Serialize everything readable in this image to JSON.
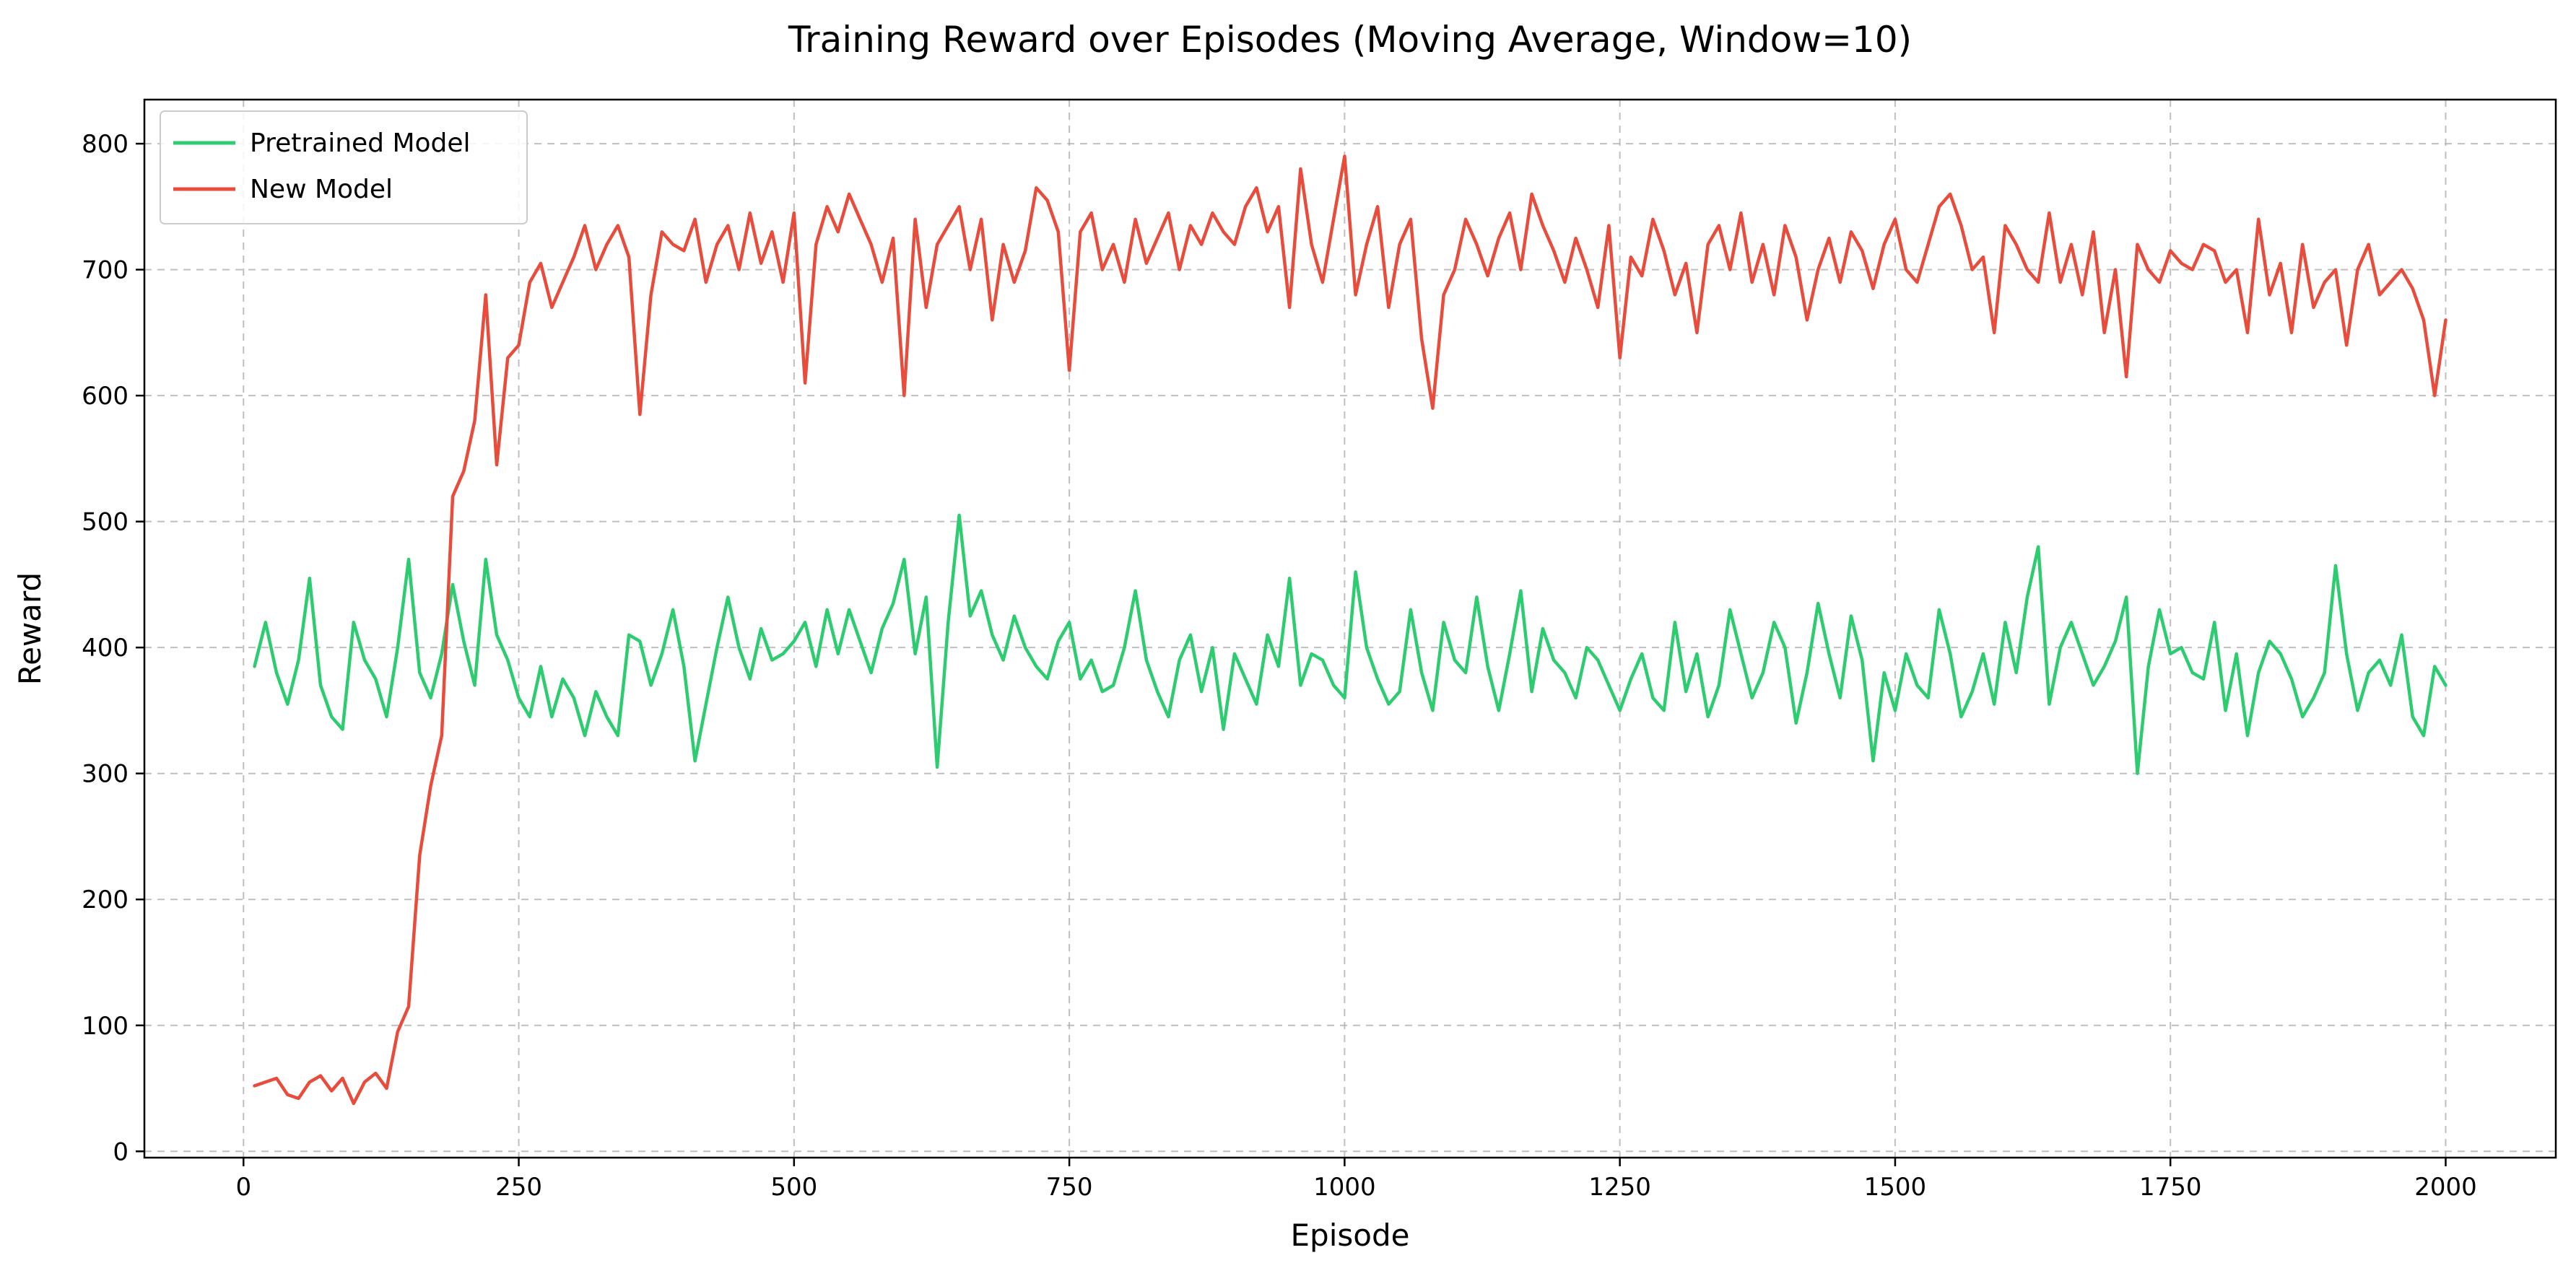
{
  "chart_data": {
    "type": "line",
    "title": "Training Reward over Episodes (Moving Average, Window=10)",
    "xlabel": "Episode",
    "ylabel": "Reward",
    "xlim": [
      -90,
      2100
    ],
    "ylim": [
      -5,
      835
    ],
    "xticks": [
      0,
      250,
      500,
      750,
      1000,
      1250,
      1500,
      1750,
      2000
    ],
    "yticks": [
      0,
      100,
      200,
      300,
      400,
      500,
      600,
      700,
      800
    ],
    "grid": true,
    "legend_position": "top-left",
    "series": [
      {
        "name": "Pretrained Model",
        "color": "#2ecc71",
        "x": [
          10,
          20,
          30,
          40,
          50,
          60,
          70,
          80,
          90,
          100,
          110,
          120,
          130,
          140,
          150,
          160,
          170,
          180,
          190,
          200,
          210,
          220,
          230,
          240,
          250,
          260,
          270,
          280,
          290,
          300,
          310,
          320,
          330,
          340,
          350,
          360,
          370,
          380,
          390,
          400,
          410,
          420,
          430,
          440,
          450,
          460,
          470,
          480,
          490,
          500,
          510,
          520,
          530,
          540,
          550,
          560,
          570,
          580,
          590,
          600,
          610,
          620,
          630,
          640,
          650,
          660,
          670,
          680,
          690,
          700,
          710,
          720,
          730,
          740,
          750,
          760,
          770,
          780,
          790,
          800,
          810,
          820,
          830,
          840,
          850,
          860,
          870,
          880,
          890,
          900,
          910,
          920,
          930,
          940,
          950,
          960,
          970,
          980,
          990,
          1000,
          1010,
          1020,
          1030,
          1040,
          1050,
          1060,
          1070,
          1080,
          1090,
          1100,
          1110,
          1120,
          1130,
          1140,
          1150,
          1160,
          1170,
          1180,
          1190,
          1200,
          1210,
          1220,
          1230,
          1240,
          1250,
          1260,
          1270,
          1280,
          1290,
          1300,
          1310,
          1320,
          1330,
          1340,
          1350,
          1360,
          1370,
          1380,
          1390,
          1400,
          1410,
          1420,
          1430,
          1440,
          1450,
          1460,
          1470,
          1480,
          1490,
          1500,
          1510,
          1520,
          1530,
          1540,
          1550,
          1560,
          1570,
          1580,
          1590,
          1600,
          1610,
          1620,
          1630,
          1640,
          1650,
          1660,
          1670,
          1680,
          1690,
          1700,
          1710,
          1720,
          1730,
          1740,
          1750,
          1760,
          1770,
          1780,
          1790,
          1800,
          1810,
          1820,
          1830,
          1840,
          1850,
          1860,
          1870,
          1880,
          1890,
          1900,
          1910,
          1920,
          1930,
          1940,
          1950,
          1960,
          1970,
          1980,
          1990,
          2000
        ],
        "values": [
          385,
          420,
          380,
          355,
          390,
          455,
          370,
          345,
          335,
          420,
          390,
          375,
          345,
          400,
          470,
          380,
          360,
          395,
          450,
          405,
          370,
          470,
          410,
          390,
          360,
          345,
          385,
          345,
          375,
          360,
          330,
          365,
          345,
          330,
          410,
          405,
          370,
          395,
          430,
          385,
          310,
          355,
          400,
          440,
          400,
          375,
          415,
          390,
          395,
          405,
          420,
          385,
          430,
          395,
          430,
          405,
          380,
          415,
          435,
          470,
          395,
          440,
          305,
          420,
          505,
          425,
          445,
          410,
          390,
          425,
          400,
          385,
          375,
          405,
          420,
          375,
          390,
          365,
          370,
          400,
          445,
          390,
          365,
          345,
          390,
          410,
          365,
          400,
          335,
          395,
          375,
          355,
          410,
          385,
          455,
          370,
          395,
          390,
          370,
          360,
          460,
          400,
          375,
          355,
          365,
          430,
          380,
          350,
          420,
          390,
          380,
          440,
          385,
          350,
          395,
          445,
          365,
          415,
          390,
          380,
          360,
          400,
          390,
          370,
          350,
          375,
          395,
          360,
          350,
          420,
          365,
          395,
          345,
          370,
          430,
          395,
          360,
          380,
          420,
          400,
          340,
          380,
          435,
          395,
          360,
          425,
          390,
          310,
          380,
          350,
          395,
          370,
          360,
          430,
          395,
          345,
          365,
          395,
          355,
          420,
          380,
          440,
          480,
          355,
          400,
          420,
          395,
          370,
          385,
          405,
          440,
          300,
          385,
          430,
          395,
          400,
          380,
          375,
          420,
          350,
          395,
          330,
          380,
          405,
          395,
          375,
          345,
          360,
          380,
          465,
          395,
          350,
          380,
          390,
          370,
          410,
          345,
          330,
          385,
          370
        ]
      },
      {
        "name": "New Model",
        "color": "#e74c3c",
        "x": [
          10,
          20,
          30,
          40,
          50,
          60,
          70,
          80,
          90,
          100,
          110,
          120,
          130,
          140,
          150,
          160,
          170,
          180,
          190,
          200,
          210,
          220,
          230,
          240,
          250,
          260,
          270,
          280,
          290,
          300,
          310,
          320,
          330,
          340,
          350,
          360,
          370,
          380,
          390,
          400,
          410,
          420,
          430,
          440,
          450,
          460,
          470,
          480,
          490,
          500,
          510,
          520,
          530,
          540,
          550,
          560,
          570,
          580,
          590,
          600,
          610,
          620,
          630,
          640,
          650,
          660,
          670,
          680,
          690,
          700,
          710,
          720,
          730,
          740,
          750,
          760,
          770,
          780,
          790,
          800,
          810,
          820,
          830,
          840,
          850,
          860,
          870,
          880,
          890,
          900,
          910,
          920,
          930,
          940,
          950,
          960,
          970,
          980,
          990,
          1000,
          1010,
          1020,
          1030,
          1040,
          1050,
          1060,
          1070,
          1080,
          1090,
          1100,
          1110,
          1120,
          1130,
          1140,
          1150,
          1160,
          1170,
          1180,
          1190,
          1200,
          1210,
          1220,
          1230,
          1240,
          1250,
          1260,
          1270,
          1280,
          1290,
          1300,
          1310,
          1320,
          1330,
          1340,
          1350,
          1360,
          1370,
          1380,
          1390,
          1400,
          1410,
          1420,
          1430,
          1440,
          1450,
          1460,
          1470,
          1480,
          1490,
          1500,
          1510,
          1520,
          1530,
          1540,
          1550,
          1560,
          1570,
          1580,
          1590,
          1600,
          1610,
          1620,
          1630,
          1640,
          1650,
          1660,
          1670,
          1680,
          1690,
          1700,
          1710,
          1720,
          1730,
          1740,
          1750,
          1760,
          1770,
          1780,
          1790,
          1800,
          1810,
          1820,
          1830,
          1840,
          1850,
          1860,
          1870,
          1880,
          1890,
          1900,
          1910,
          1920,
          1930,
          1940,
          1950,
          1960,
          1970,
          1980,
          1990,
          2000
        ],
        "values": [
          52,
          55,
          58,
          45,
          42,
          55,
          60,
          48,
          58,
          38,
          55,
          62,
          50,
          95,
          115,
          235,
          290,
          330,
          520,
          540,
          580,
          680,
          545,
          630,
          640,
          690,
          705,
          670,
          690,
          710,
          735,
          700,
          720,
          735,
          710,
          585,
          680,
          730,
          720,
          715,
          740,
          690,
          720,
          735,
          700,
          745,
          705,
          730,
          690,
          745,
          610,
          720,
          750,
          730,
          760,
          740,
          720,
          690,
          725,
          600,
          740,
          670,
          720,
          735,
          750,
          700,
          740,
          660,
          720,
          690,
          715,
          765,
          755,
          730,
          620,
          730,
          745,
          700,
          720,
          690,
          740,
          705,
          725,
          745,
          700,
          735,
          720,
          745,
          730,
          720,
          750,
          765,
          730,
          750,
          670,
          780,
          720,
          690,
          740,
          790,
          680,
          720,
          750,
          670,
          720,
          740,
          645,
          590,
          680,
          700,
          740,
          720,
          695,
          725,
          745,
          700,
          760,
          735,
          715,
          690,
          725,
          700,
          670,
          735,
          630,
          710,
          695,
          740,
          715,
          680,
          705,
          650,
          720,
          735,
          700,
          745,
          690,
          720,
          680,
          735,
          710,
          660,
          700,
          725,
          690,
          730,
          715,
          685,
          720,
          740,
          700,
          690,
          720,
          750,
          760,
          735,
          700,
          710,
          650,
          735,
          720,
          700,
          690,
          745,
          690,
          720,
          680,
          730,
          650,
          700,
          615,
          720,
          700,
          690,
          715,
          705,
          700,
          720,
          715,
          690,
          700,
          650,
          740,
          680,
          705,
          650,
          720,
          670,
          690,
          700,
          640,
          700,
          720,
          680,
          690,
          700,
          685,
          660,
          600,
          660
        ]
      }
    ]
  }
}
